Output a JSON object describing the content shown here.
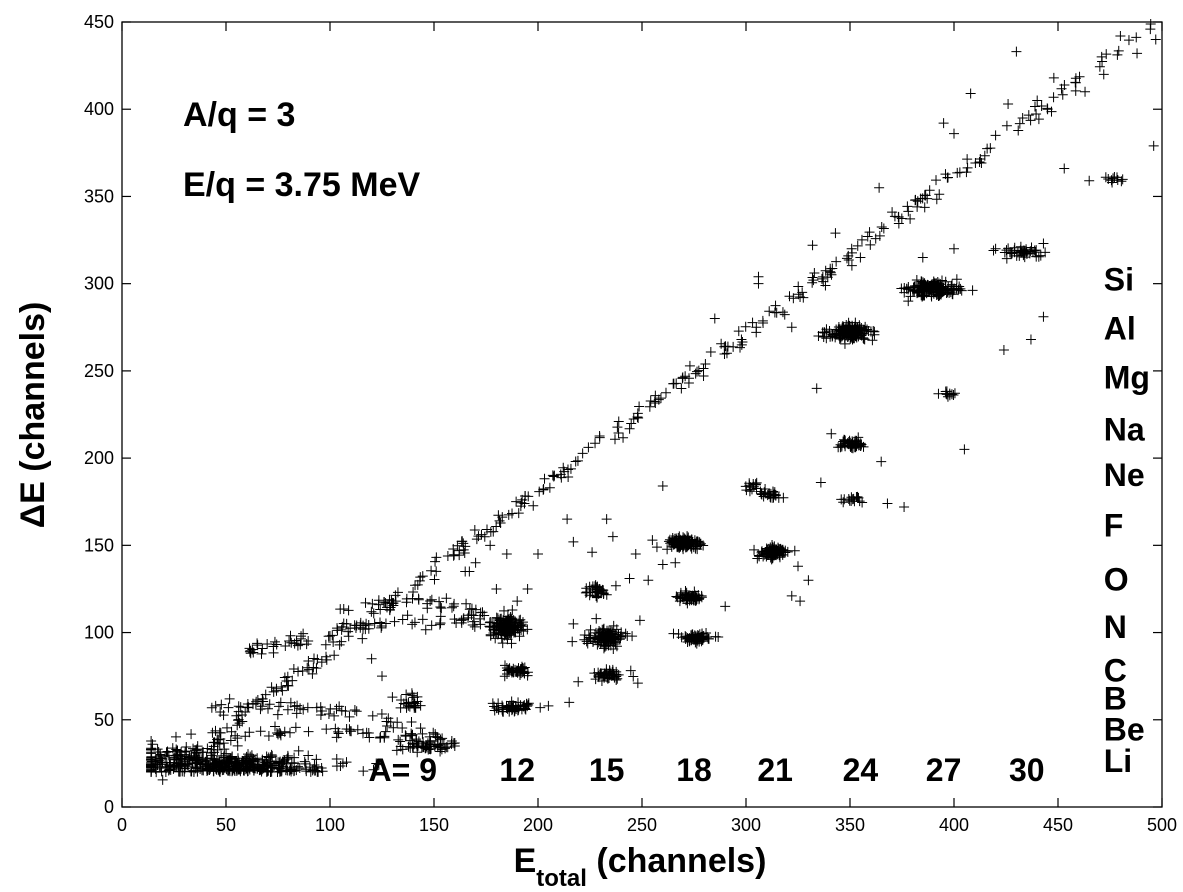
{
  "chart_data": {
    "type": "scatter",
    "title": "",
    "xlabel": "E",
    "xlabel_subscript": "total",
    "xlabel_rest": " (channels)",
    "ylabel": "ΔE (channels)",
    "xlim": [
      0,
      500
    ],
    "ylim": [
      0,
      450
    ],
    "xticks": [
      0,
      50,
      100,
      150,
      200,
      250,
      300,
      350,
      400,
      450,
      500
    ],
    "yticks": [
      0,
      50,
      100,
      150,
      200,
      250,
      300,
      350,
      400,
      450
    ],
    "grid": false,
    "marker": "+",
    "marker_color": "#000000",
    "annotations": {
      "aq": "A/q = 3",
      "eq": "E/q = 3.75 MeV"
    },
    "mass_labels": [
      {
        "text": "A= 9",
        "x": 135,
        "y": 15
      },
      {
        "text": "12",
        "x": 190,
        "y": 15
      },
      {
        "text": "15",
        "x": 233,
        "y": 15
      },
      {
        "text": "18",
        "x": 275,
        "y": 15
      },
      {
        "text": "21",
        "x": 314,
        "y": 15
      },
      {
        "text": "24",
        "x": 355,
        "y": 15
      },
      {
        "text": "27",
        "x": 395,
        "y": 15
      },
      {
        "text": "30",
        "x": 435,
        "y": 15
      }
    ],
    "element_labels": [
      {
        "text": "Si",
        "y": 296
      },
      {
        "text": "Al",
        "y": 268
      },
      {
        "text": "Mg",
        "y": 240
      },
      {
        "text": "Na",
        "y": 210
      },
      {
        "text": "Ne",
        "y": 184
      },
      {
        "text": "F",
        "y": 155
      },
      {
        "text": "O",
        "y": 124
      },
      {
        "text": "N",
        "y": 97
      },
      {
        "text": "C",
        "y": 72
      },
      {
        "text": "B",
        "y": 56
      },
      {
        "text": "Be",
        "y": 38
      },
      {
        "text": "Li",
        "y": 20
      }
    ],
    "clusters": [
      {
        "element": "Li",
        "A": 9,
        "x": 147,
        "y": 35,
        "sx": 12,
        "sy": 3,
        "n": 45
      },
      {
        "element": "Be",
        "A": 9,
        "x": 140,
        "y": 60,
        "sx": 6,
        "sy": 4,
        "n": 25
      },
      {
        "element": "Be",
        "A": 12,
        "x": 188,
        "y": 57,
        "sx": 10,
        "sy": 3,
        "n": 55
      },
      {
        "element": "B",
        "A": 12,
        "x": 190,
        "y": 78,
        "sx": 7,
        "sy": 3,
        "n": 40
      },
      {
        "element": "C",
        "A": 12,
        "x": 185,
        "y": 103,
        "sx": 8,
        "sy": 6,
        "n": 140
      },
      {
        "element": "B",
        "A": 15,
        "x": 235,
        "y": 76,
        "sx": 8,
        "sy": 3,
        "n": 45
      },
      {
        "element": "C",
        "A": 15,
        "x": 233,
        "y": 97,
        "sx": 8,
        "sy": 5,
        "n": 110
      },
      {
        "element": "N",
        "A": 15,
        "x": 228,
        "y": 124,
        "sx": 6,
        "sy": 4,
        "n": 30
      },
      {
        "element": "C",
        "A": 18,
        "x": 276,
        "y": 97,
        "sx": 8,
        "sy": 3,
        "n": 60
      },
      {
        "element": "N",
        "A": 18,
        "x": 273,
        "y": 120,
        "sx": 7,
        "sy": 3,
        "n": 60
      },
      {
        "element": "O",
        "A": 18,
        "x": 270,
        "y": 151,
        "sx": 8,
        "sy": 4,
        "n": 120
      },
      {
        "element": "O",
        "A": 21,
        "x": 313,
        "y": 146,
        "sx": 8,
        "sy": 4,
        "n": 80
      },
      {
        "element": "F",
        "A": 21,
        "x": 310,
        "y": 179,
        "sx": 6,
        "sy": 3,
        "n": 25
      },
      {
        "element": "Ne",
        "A": 21,
        "x": 303,
        "y": 184,
        "sx": 4,
        "sy": 2,
        "n": 12
      },
      {
        "element": "F",
        "A": 24,
        "x": 352,
        "y": 176,
        "sx": 5,
        "sy": 2,
        "n": 15
      },
      {
        "element": "Ne",
        "A": 24,
        "x": 350,
        "y": 208,
        "sx": 8,
        "sy": 3,
        "n": 50
      },
      {
        "element": "Mg",
        "A": 24,
        "x": 350,
        "y": 272,
        "sx": 10,
        "sy": 4,
        "n": 160
      },
      {
        "element": "Na",
        "A": 27,
        "x": 397,
        "y": 237,
        "sx": 4,
        "sy": 3,
        "n": 10
      },
      {
        "element": "Al",
        "A": 27,
        "x": 390,
        "y": 297,
        "sx": 12,
        "sy": 4,
        "n": 170
      },
      {
        "element": "Si",
        "A": 30,
        "x": 432,
        "y": 318,
        "sx": 10,
        "sy": 3,
        "n": 40
      },
      {
        "element": "Si",
        "A": 33,
        "x": 478,
        "y": 360,
        "sx": 5,
        "sy": 2,
        "n": 8
      }
    ],
    "diagonal": {
      "x_start": 20,
      "x_end": 500,
      "slope": 0.905,
      "n": 320
    },
    "low_energy_blob": {
      "x": 50,
      "y": 20,
      "sx": 25,
      "sy": 8,
      "n": 450
    },
    "bands": [
      {
        "x0": 40,
        "y0": 58,
        "x1": 160,
        "y1": 36,
        "n": 70
      },
      {
        "x0": 45,
        "y0": 38,
        "x1": 150,
        "y1": 34,
        "n": 50
      },
      {
        "x0": 60,
        "y0": 88,
        "x1": 190,
        "y1": 105,
        "n": 80
      },
      {
        "x0": 100,
        "y0": 110,
        "x1": 175,
        "y1": 110,
        "n": 40
      }
    ],
    "extra_points": [
      [
        140,
        34
      ],
      [
        160,
        35
      ],
      [
        205,
        58
      ],
      [
        215,
        60
      ],
      [
        248,
        71
      ],
      [
        249,
        107
      ],
      [
        217,
        105
      ],
      [
        228,
        108
      ],
      [
        253,
        130
      ],
      [
        260,
        139
      ],
      [
        255,
        153
      ],
      [
        260,
        184
      ],
      [
        306,
        304
      ],
      [
        332,
        322
      ],
      [
        343,
        329
      ],
      [
        355,
        315
      ],
      [
        327,
        295
      ],
      [
        322,
        275
      ],
      [
        334,
        240
      ],
      [
        341,
        214
      ],
      [
        336,
        186
      ],
      [
        365,
        198
      ],
      [
        376,
        172
      ],
      [
        368,
        174
      ],
      [
        405,
        205
      ],
      [
        398,
        236
      ],
      [
        424,
        262
      ],
      [
        437,
        268
      ],
      [
        443,
        281
      ],
      [
        453,
        366
      ],
      [
        465,
        359
      ],
      [
        473,
        361
      ],
      [
        476,
        358
      ],
      [
        496,
        379
      ],
      [
        463,
        410
      ],
      [
        472,
        420
      ],
      [
        430,
        433
      ],
      [
        471,
        430
      ],
      [
        480,
        442
      ],
      [
        488,
        432
      ],
      [
        497,
        440
      ],
      [
        440,
        405
      ],
      [
        445,
        400
      ],
      [
        433,
        395
      ],
      [
        400,
        386
      ],
      [
        395,
        392
      ],
      [
        420,
        385
      ],
      [
        448,
        418
      ],
      [
        408,
        409
      ],
      [
        426,
        403
      ],
      [
        364,
        355
      ],
      [
        306,
        300
      ],
      [
        285,
        280
      ],
      [
        236,
        155
      ],
      [
        226,
        146
      ],
      [
        244,
        131
      ],
      [
        266,
        140
      ],
      [
        233,
        165
      ],
      [
        217,
        152
      ],
      [
        200,
        145
      ],
      [
        195,
        125
      ],
      [
        214,
        165
      ],
      [
        290,
        115
      ],
      [
        247,
        145
      ],
      [
        190,
        118
      ],
      [
        180,
        125
      ],
      [
        170,
        140
      ],
      [
        165,
        135
      ],
      [
        177,
        150
      ],
      [
        185,
        145
      ],
      [
        108,
        105
      ],
      [
        117,
        102
      ],
      [
        120,
        85
      ],
      [
        125,
        75
      ],
      [
        98,
        93
      ],
      [
        102,
        87
      ],
      [
        92,
        80
      ],
      [
        130,
        63
      ],
      [
        167,
        135
      ],
      [
        326,
        118
      ],
      [
        322,
        121
      ],
      [
        330,
        130
      ],
      [
        325,
        138
      ],
      [
        378,
        290
      ],
      [
        385,
        315
      ],
      [
        419,
        319
      ],
      [
        443,
        323
      ],
      [
        420,
        320
      ],
      [
        400,
        320
      ]
    ]
  }
}
